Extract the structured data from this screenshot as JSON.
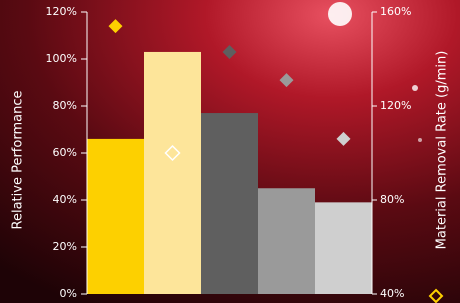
{
  "chart_data": {
    "type": "bar",
    "y_label": "Relative Performance",
    "y2_label": "Material Removal Rate (g/min)",
    "categories": [
      null,
      null,
      null,
      null,
      null
    ],
    "series": [
      {
        "values": [
          66,
          103,
          77,
          45,
          39
        ],
        "colors": [
          "#fdd000",
          "#fde59a",
          "#5f5f5f",
          "#9a9a9a",
          "#cfcfcf"
        ]
      },
      {
        "type": "scatter",
        "axis": "y2",
        "values": [
          154,
          100,
          143,
          131,
          106
        ],
        "colors": [
          "#fdd000",
          "#ffffff",
          "#5f5f5f",
          "#9a9a9a",
          "#cfcfcf"
        ],
        "hollow": [
          false,
          true,
          false,
          false,
          false
        ]
      }
    ],
    "ylim": [
      0,
      120
    ],
    "yticks": [
      {
        "value": 0,
        "label": "0%"
      },
      {
        "value": 20,
        "label": "20%"
      },
      {
        "value": 40,
        "label": "40%"
      },
      {
        "value": 60,
        "label": "60%"
      },
      {
        "value": 80,
        "label": "80%"
      },
      {
        "value": 100,
        "label": "100%"
      },
      {
        "value": 120,
        "label": "120%"
      }
    ],
    "y2lim": [
      40,
      160
    ],
    "y2ticks": [
      {
        "value": 40,
        "label": "40%"
      },
      {
        "value": 80,
        "label": "80%"
      },
      {
        "value": 120,
        "label": "120%"
      },
      {
        "value": 160,
        "label": "160%"
      }
    ]
  }
}
